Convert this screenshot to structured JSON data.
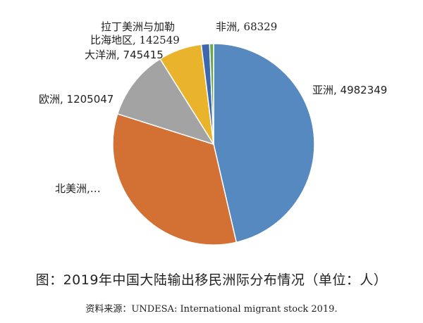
{
  "chart_data": {
    "type": "pie",
    "start_angle_deg": 0,
    "direction": "clockwise",
    "slices": [
      {
        "label": "亚洲",
        "value": 4982349,
        "display": "亚洲, 4982349",
        "color": "#5589c0"
      },
      {
        "label": "北美洲",
        "value": 3600000,
        "display": "北美洲,…",
        "color": "#d37135"
      },
      {
        "label": "欧洲",
        "value": 1205047,
        "display": "欧洲, 1205047",
        "color": "#a3a3a3"
      },
      {
        "label": "大洋洲",
        "value": 745415,
        "display": "大洋洲, 745415",
        "color": "#e9b32b"
      },
      {
        "label": "拉丁美洲与加勒比海地区",
        "value": 142549,
        "display_line1": "拉丁美洲与加勒",
        "display_line2": "比海地区, 142549",
        "color": "#3e68ad"
      },
      {
        "label": "非洲",
        "value": 68329,
        "display": "非洲, 68329",
        "color": "#6aa84f"
      }
    ]
  },
  "caption": "图：2019年中国大陆输出移民洲际分布情况（单位：人）",
  "source": "资料来源：UNDESA: International migrant stock 2019."
}
